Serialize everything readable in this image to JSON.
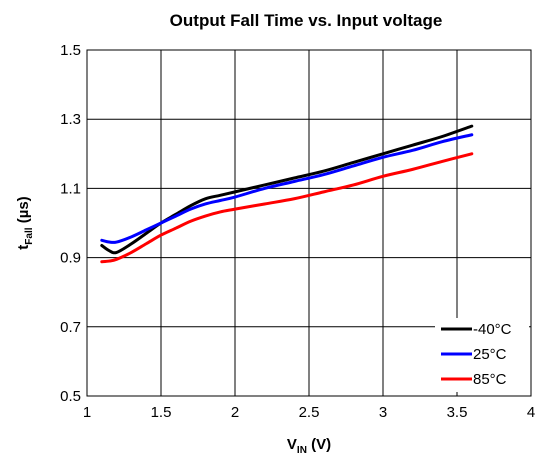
{
  "chart_data": {
    "type": "line",
    "title": "Output Fall Time vs. Input voltage",
    "xlabel": {
      "main": "V",
      "sub": "IN",
      "unit": " (V)"
    },
    "ylabel": {
      "main": "t",
      "sub": "Fall",
      "unit": " (µs)"
    },
    "xlim": [
      1,
      4
    ],
    "ylim": [
      0.5,
      1.5
    ],
    "xticks": [
      1,
      1.5,
      2,
      2.5,
      3,
      3.5,
      4
    ],
    "yticks": [
      0.5,
      0.7,
      0.9,
      1.1,
      1.3,
      1.5
    ],
    "xtick_labels": [
      "1",
      "1.5",
      "2",
      "2.5",
      "3",
      "3.5",
      "4"
    ],
    "ytick_labels": [
      "0.5",
      "0.7",
      "0.9",
      "1.1",
      "1.3",
      "1.5"
    ],
    "grid": true,
    "legend_position": "bottom-right",
    "series": [
      {
        "name": "-40°C",
        "color": "#000000",
        "x": [
          1.1,
          1.15,
          1.2,
          1.3,
          1.4,
          1.5,
          1.6,
          1.7,
          1.8,
          1.9,
          2.0,
          2.2,
          2.4,
          2.6,
          2.8,
          3.0,
          3.2,
          3.4,
          3.6
        ],
        "y": [
          0.935,
          0.92,
          0.915,
          0.94,
          0.97,
          1.0,
          1.025,
          1.05,
          1.07,
          1.08,
          1.09,
          1.11,
          1.13,
          1.15,
          1.175,
          1.2,
          1.225,
          1.25,
          1.28
        ]
      },
      {
        "name": "25°C",
        "color": "#0000ff",
        "x": [
          1.1,
          1.15,
          1.2,
          1.3,
          1.4,
          1.5,
          1.6,
          1.7,
          1.8,
          1.9,
          2.0,
          2.2,
          2.4,
          2.6,
          2.8,
          3.0,
          3.2,
          3.4,
          3.6
        ],
        "y": [
          0.95,
          0.945,
          0.945,
          0.96,
          0.98,
          1.0,
          1.02,
          1.04,
          1.055,
          1.065,
          1.075,
          1.1,
          1.12,
          1.14,
          1.165,
          1.19,
          1.21,
          1.235,
          1.255
        ]
      },
      {
        "name": "85°C",
        "color": "#ff0000",
        "x": [
          1.1,
          1.15,
          1.2,
          1.3,
          1.4,
          1.5,
          1.6,
          1.7,
          1.8,
          1.9,
          2.0,
          2.2,
          2.4,
          2.6,
          2.8,
          3.0,
          3.2,
          3.4,
          3.6
        ],
        "y": [
          0.888,
          0.89,
          0.895,
          0.915,
          0.94,
          0.965,
          0.985,
          1.005,
          1.02,
          1.032,
          1.04,
          1.055,
          1.07,
          1.09,
          1.11,
          1.135,
          1.155,
          1.178,
          1.2
        ]
      }
    ]
  }
}
